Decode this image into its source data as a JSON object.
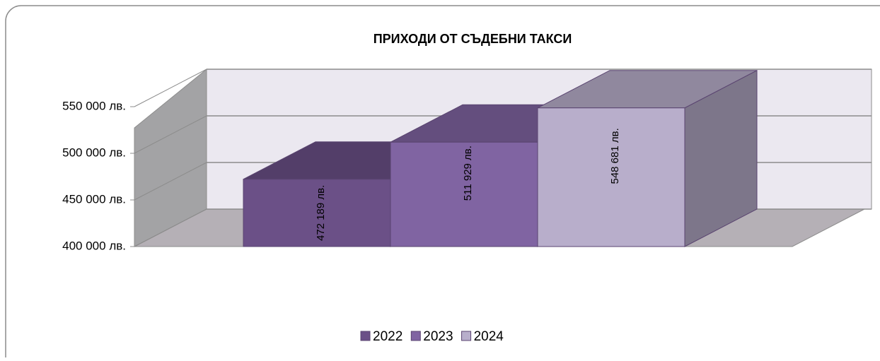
{
  "chart_data": {
    "type": "bar3d",
    "title": "ПРИХОДИ ОТ СЪДЕБНИ ТАКСИ",
    "series": [
      {
        "name": "2022",
        "color": "#6b5087",
        "values": [
          472189
        ],
        "value_labels": [
          "472 189 лв."
        ]
      },
      {
        "name": "2023",
        "color": "#8064a2",
        "values": [
          511929
        ],
        "value_labels": [
          "511 929 лв."
        ]
      },
      {
        "name": "2024",
        "color": "#b8aecb",
        "values": [
          548681
        ],
        "value_labels": [
          "548 681 лв."
        ]
      }
    ],
    "ylim": [
      400000,
      550000
    ],
    "yticks": [
      {
        "value": 400000,
        "label": "400 000 лв."
      },
      {
        "value": 450000,
        "label": "450 000 лв."
      },
      {
        "value": 500000,
        "label": "500 000 лв."
      },
      {
        "value": 550000,
        "label": "550 000 лв."
      }
    ],
    "grid": true,
    "legend": "bottom"
  }
}
